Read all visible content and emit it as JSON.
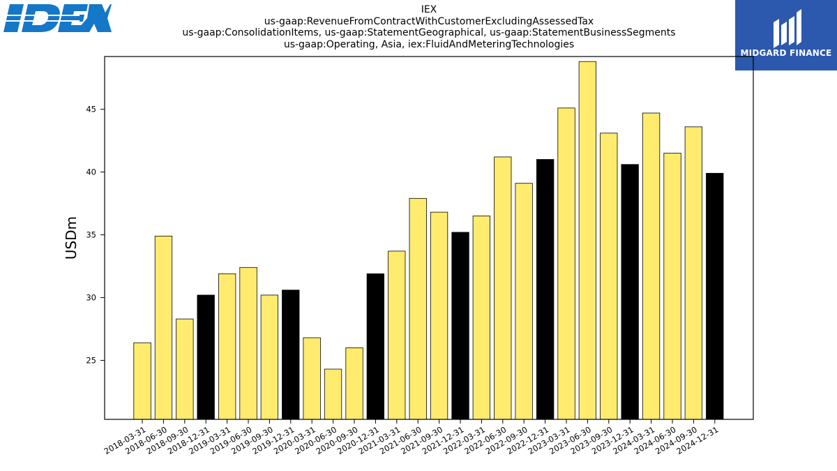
{
  "header": {
    "title_lines": [
      "IEX",
      "us-gaap:RevenueFromContractWithCustomerExcludingAssessedTax",
      "us-gaap:ConsolidationItems, us-gaap:StatementGeographical, us-gaap:StatementBusinessSegments",
      "us-gaap:Operating, Asia, iex:FluidAndMeteringTechnologies"
    ]
  },
  "logos": {
    "left_brand": "IDEX",
    "right_brand": "MIDGARD FINANCE",
    "left_color": "#1577c8",
    "right_bg": "#2c59ad"
  },
  "colors": {
    "quarter_bar": "#ffec6e",
    "year_end_bar": "#000000",
    "bar_edge": "#000000"
  },
  "chart_data": {
    "type": "bar",
    "ylabel": "USDm",
    "xlabel": "",
    "ylim": [
      20.3,
      49.2
    ],
    "yticks": [
      25,
      30,
      35,
      40,
      45
    ],
    "grid": false,
    "categories": [
      "2018-03-31",
      "2018-06-30",
      "2018-09-30",
      "2018-12-31",
      "2019-03-31",
      "2019-06-30",
      "2019-09-30",
      "2019-12-31",
      "2020-03-31",
      "2020-06-30",
      "2020-09-30",
      "2020-12-31",
      "2021-03-31",
      "2021-06-30",
      "2021-09-30",
      "2021-12-31",
      "2022-03-31",
      "2022-06-30",
      "2022-09-30",
      "2022-12-31",
      "2023-03-31",
      "2023-06-30",
      "2023-09-30",
      "2023-12-31",
      "2024-03-31",
      "2024-06-30",
      "2024-09-30",
      "2024-12-31"
    ],
    "values": [
      26.4,
      34.9,
      28.3,
      30.2,
      31.9,
      32.4,
      30.2,
      30.6,
      26.8,
      24.3,
      26.0,
      31.9,
      33.7,
      37.9,
      36.8,
      35.2,
      36.5,
      41.2,
      39.1,
      41.0,
      45.1,
      48.8,
      43.1,
      40.6,
      44.7,
      41.5,
      43.6,
      39.9
    ],
    "year_end": [
      false,
      false,
      false,
      true,
      false,
      false,
      false,
      true,
      false,
      false,
      false,
      true,
      false,
      false,
      false,
      true,
      false,
      false,
      false,
      true,
      false,
      false,
      false,
      true,
      false,
      false,
      false,
      true
    ]
  }
}
